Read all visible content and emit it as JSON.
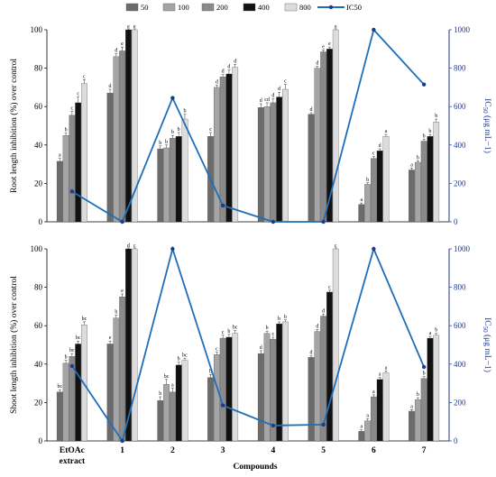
{
  "legend": {
    "series_labels": [
      "50",
      "100",
      "200",
      "400",
      "800"
    ],
    "line_label": "IC50"
  },
  "colors": {
    "series": [
      "#6b6b6b",
      "#a5a5a5",
      "#8a8a8a",
      "#111111",
      "#dcdcdc"
    ],
    "line": "#1f6fb8",
    "right_axis": "#1f3a8a"
  },
  "x_axis": {
    "title": "Compounds",
    "categories": [
      "EtOAc extract",
      "1",
      "2",
      "3",
      "4",
      "5",
      "6",
      "7"
    ]
  },
  "chart_data": [
    {
      "type": "bar",
      "name": "root",
      "ylabel": "Root length inhibition (%) over control",
      "y2label": "IC50 (μg mL−1)",
      "ylim": [
        0,
        100
      ],
      "y2lim": [
        0,
        1000
      ],
      "y_ticks": [
        0,
        20,
        40,
        60,
        80,
        100
      ],
      "y2_ticks": [
        0,
        200,
        400,
        600,
        800,
        1000
      ],
      "grid": false,
      "legend_position": "top",
      "series": [
        {
          "name": "50",
          "values": [
            31.5,
            67,
            38,
            44.5,
            59.5,
            56,
            9,
            27
          ],
          "errors": [
            1.5,
            2,
            1.5,
            2,
            2,
            0.8,
            0.8,
            1
          ],
          "labels": [
            "a",
            "d",
            "b",
            "c",
            "d",
            "d",
            "a",
            "a"
          ]
        },
        {
          "name": "100",
          "values": [
            45,
            86,
            38.5,
            70,
            60,
            80,
            19.5,
            31
          ],
          "errors": [
            1.2,
            1.5,
            1.5,
            1.2,
            2,
            1,
            0.8,
            0.8
          ],
          "labels": [
            "b",
            "d",
            "b",
            "d",
            "cd",
            "d",
            "b",
            "b"
          ]
        },
        {
          "name": "200",
          "values": [
            55.5,
            89,
            43.5,
            75.5,
            62,
            88.5,
            33,
            42
          ],
          "errors": [
            2,
            2,
            1.5,
            1.2,
            2,
            1,
            1,
            1
          ],
          "labels": [
            "c",
            "e",
            "b",
            "d",
            "d",
            "e",
            "c",
            "b"
          ]
        },
        {
          "name": "400",
          "values": [
            62,
            100,
            44.5,
            77,
            65,
            90,
            37,
            44.5
          ],
          "errors": [
            3,
            0.5,
            2,
            2,
            2.5,
            1,
            1,
            1
          ],
          "labels": [
            "c",
            "e",
            "b",
            "d",
            "d",
            "e",
            "d",
            "b"
          ]
        },
        {
          "name": "800",
          "values": [
            72,
            100,
            53.5,
            80.5,
            69,
            100,
            44.5,
            52
          ],
          "errors": [
            2,
            0.5,
            2.5,
            1.5,
            2.5,
            0.5,
            1,
            1.5
          ],
          "labels": [
            "c",
            "e",
            "b",
            "d",
            "c",
            "e",
            "a",
            "b"
          ]
        }
      ],
      "ic50": {
        "name": "IC50",
        "values": [
          158,
          0,
          645,
          85,
          0,
          0,
          1000,
          715
        ]
      }
    },
    {
      "type": "bar",
      "name": "shoot",
      "ylabel": "Shoot length inhibition (%) over control",
      "y2label": "IC50 (μg mL−1)",
      "ylim": [
        0,
        100
      ],
      "y2lim": [
        0,
        1000
      ],
      "y_ticks": [
        0,
        20,
        40,
        60,
        80,
        100
      ],
      "y2_ticks": [
        0,
        200,
        400,
        600,
        800,
        1000
      ],
      "grid": false,
      "series": [
        {
          "name": "50",
          "values": [
            25.5,
            50.5,
            21,
            33,
            45.5,
            43.5,
            5,
            15.5
          ],
          "errors": [
            1.2,
            1.5,
            2,
            1.5,
            1.5,
            0.8,
            0.8,
            0.8
          ],
          "labels": [
            "bc",
            "e",
            "b",
            "b",
            "d",
            "d",
            "a",
            "a"
          ]
        },
        {
          "name": "100",
          "values": [
            40.5,
            64,
            29.5,
            45,
            56,
            57,
            10.5,
            21.5
          ],
          "errors": [
            1.5,
            1.5,
            2.5,
            1.2,
            1.2,
            1,
            1,
            1
          ],
          "labels": [
            "b",
            "b",
            "bc",
            "c",
            "b",
            "d",
            "a",
            "b"
          ]
        },
        {
          "name": "200",
          "values": [
            44,
            75,
            25.5,
            53.5,
            53,
            65,
            23,
            32.5
          ],
          "errors": [
            1.5,
            1.5,
            2,
            1.5,
            1,
            1,
            1,
            1
          ],
          "labels": [
            "bc",
            "e",
            "a",
            "c",
            "c",
            "d",
            "a",
            "b"
          ]
        },
        {
          "name": "400",
          "values": [
            50.5,
            100,
            39.5,
            54,
            61,
            77.5,
            32,
            53.5
          ],
          "errors": [
            1.5,
            0.5,
            1.5,
            1.5,
            1,
            1,
            1,
            1
          ],
          "labels": [
            "bc",
            "d",
            "b",
            "b",
            "b",
            "c",
            "a",
            "a"
          ]
        },
        {
          "name": "800",
          "values": [
            60.5,
            100,
            42,
            56,
            62,
            100,
            35.5,
            55
          ],
          "errors": [
            1.5,
            0.5,
            1,
            1.5,
            1,
            0.5,
            1,
            1
          ],
          "labels": [
            "bc",
            "c",
            "bc",
            "bc",
            "b",
            "c",
            "a",
            "b"
          ]
        }
      ],
      "ic50": {
        "name": "IC50",
        "values": [
          390,
          0,
          1000,
          185,
          80,
          85,
          1000,
          385
        ]
      }
    }
  ]
}
